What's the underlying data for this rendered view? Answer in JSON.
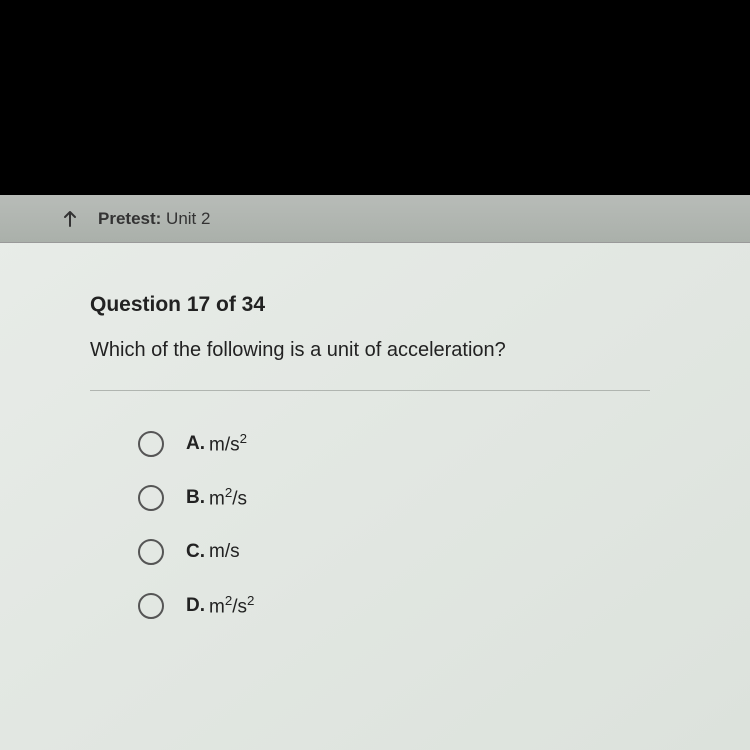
{
  "header": {
    "title_bold": "Pretest:",
    "title_regular": "Unit 2"
  },
  "question": {
    "number_label": "Question 17 of 34",
    "text": "Which of the following is a unit of acceleration?"
  },
  "options": [
    {
      "letter": "A.",
      "value_html": "m/s<sup>2</sup>",
      "value_plain": "m/s²"
    },
    {
      "letter": "B.",
      "value_html": "m<sup>2</sup>/s",
      "value_plain": "m²/s"
    },
    {
      "letter": "C.",
      "value_html": "m/s",
      "value_plain": "m/s"
    },
    {
      "letter": "D.",
      "value_html": "m<sup>2</sup>/s<sup>2</sup>",
      "value_plain": "m²/s²"
    }
  ],
  "colors": {
    "page_background": "#000000",
    "content_background": "#e8ece8",
    "header_background": "#b0b5b0",
    "text_color": "#222222",
    "radio_border": "#555555",
    "divider_color": "#b0b5b0"
  }
}
